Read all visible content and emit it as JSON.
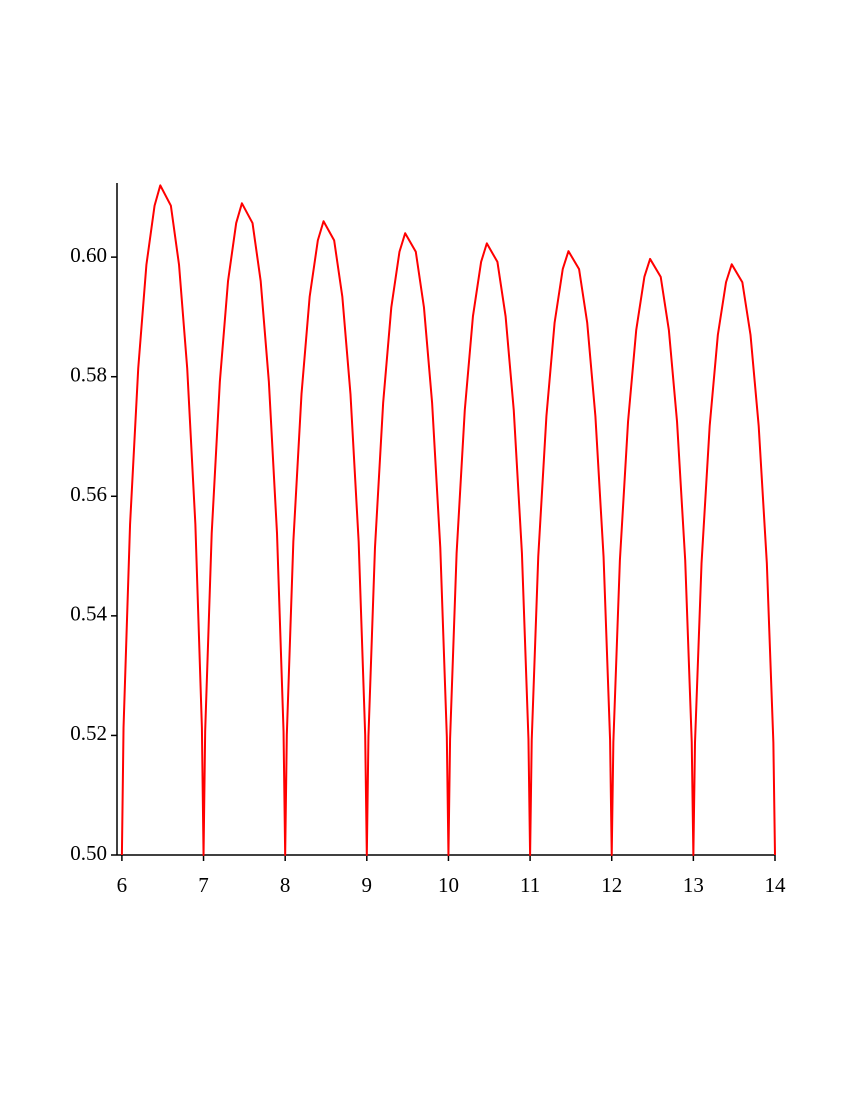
{
  "chart_data": {
    "type": "line",
    "x": [
      6,
      6.02,
      6.1,
      6.2,
      6.3,
      6.4,
      6.47,
      6.6,
      6.7,
      6.8,
      6.9,
      6.98,
      7,
      7.02,
      7.1,
      7.2,
      7.3,
      7.4,
      7.47,
      7.6,
      7.7,
      7.8,
      7.9,
      7.98,
      8,
      8.02,
      8.1,
      8.2,
      8.3,
      8.4,
      8.47,
      8.6,
      8.7,
      8.8,
      8.9,
      8.98,
      9,
      9.02,
      9.1,
      9.2,
      9.3,
      9.4,
      9.47,
      9.6,
      9.7,
      9.8,
      9.9,
      9.98,
      10,
      10.02,
      10.1,
      10.2,
      10.3,
      10.4,
      10.47,
      10.6,
      10.7,
      10.8,
      10.9,
      10.98,
      11,
      11.02,
      11.1,
      11.2,
      11.3,
      11.4,
      11.47,
      11.6,
      11.7,
      11.8,
      11.9,
      11.98,
      12,
      12.02,
      12.1,
      12.2,
      12.3,
      12.4,
      12.47,
      12.6,
      12.7,
      12.8,
      12.9,
      12.98,
      13,
      13.02,
      13.1,
      13.2,
      13.3,
      13.4,
      13.47,
      13.6,
      13.7,
      13.8,
      13.9,
      13.98,
      14
    ],
    "series": [
      {
        "color": "#ff0000",
        "values": [
          0.5,
          0.5213,
          0.5553,
          0.5814,
          0.5987,
          0.6086,
          0.612,
          0.6086,
          0.5987,
          0.5814,
          0.5553,
          0.5213,
          0.5,
          0.5207,
          0.5538,
          0.5792,
          0.596,
          0.6057,
          0.609,
          0.6057,
          0.596,
          0.5792,
          0.5538,
          0.5207,
          0.5,
          0.5201,
          0.5524,
          0.5771,
          0.5934,
          0.6028,
          0.606,
          0.6028,
          0.5934,
          0.5771,
          0.5524,
          0.5201,
          0.5,
          0.5198,
          0.5514,
          0.5756,
          0.5916,
          0.6009,
          0.604,
          0.6009,
          0.5916,
          0.5756,
          0.5514,
          0.5198,
          0.5,
          0.5194,
          0.5505,
          0.5744,
          0.5901,
          0.5992,
          0.6023,
          0.5992,
          0.5901,
          0.5744,
          0.5505,
          0.5194,
          0.5,
          0.5192,
          0.5499,
          0.5734,
          0.589,
          0.598,
          0.601,
          0.598,
          0.589,
          0.5734,
          0.5499,
          0.5192,
          0.5,
          0.5189,
          0.5493,
          0.5725,
          0.5878,
          0.5967,
          0.5997,
          0.5967,
          0.5878,
          0.5725,
          0.5493,
          0.5189,
          0.5,
          0.5188,
          0.5488,
          0.5718,
          0.587,
          0.5958,
          0.5988,
          0.5958,
          0.587,
          0.5718,
          0.5488,
          0.5188,
          0.5
        ]
      }
    ],
    "xlim": [
      5.94,
      14
    ],
    "ylim": [
      0.5,
      0.6124
    ],
    "xticks": [
      6,
      7,
      8,
      9,
      10,
      11,
      12,
      13,
      14
    ],
    "yticks": [
      {
        "value": 0.5,
        "label": "0.50"
      },
      {
        "value": 0.52,
        "label": "0.52"
      },
      {
        "value": 0.54,
        "label": "0.54"
      },
      {
        "value": 0.56,
        "label": "0.56"
      },
      {
        "value": 0.58,
        "label": "0.58"
      },
      {
        "value": 0.6,
        "label": "0.60"
      }
    ]
  }
}
